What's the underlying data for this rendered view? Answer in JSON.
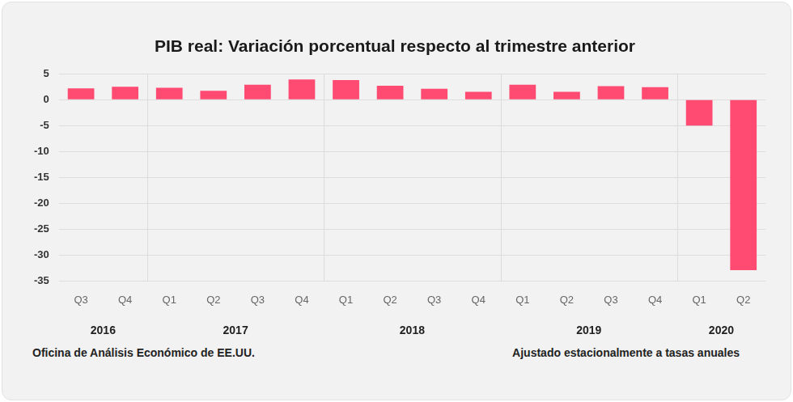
{
  "chart_data": {
    "type": "bar",
    "title": "PIB real: Variación porcentual respecto al trimestre anterior",
    "groups": [
      {
        "label": "2016",
        "categories": [
          "Q3",
          "Q4"
        ]
      },
      {
        "label": "2017",
        "categories": [
          "Q1",
          "Q2",
          "Q3",
          "Q4"
        ]
      },
      {
        "label": "2018",
        "categories": [
          "Q1",
          "Q2",
          "Q3",
          "Q4"
        ]
      },
      {
        "label": "2019",
        "categories": [
          "Q1",
          "Q2",
          "Q3",
          "Q4"
        ]
      },
      {
        "label": "2020",
        "categories": [
          "Q1",
          "Q2"
        ]
      }
    ],
    "values": [
      2.2,
      2.5,
      2.3,
      1.7,
      2.9,
      3.9,
      3.8,
      2.7,
      2.1,
      1.5,
      2.9,
      1.5,
      2.6,
      2.4,
      -5.0,
      -32.9
    ],
    "color": "#ff4a72",
    "ylim": [
      -35,
      5
    ],
    "yticks": [
      -35,
      -30,
      -25,
      -20,
      -15,
      -10,
      -5,
      0,
      5
    ],
    "grid": true,
    "source": "Oficina de Análisis Económico de EE.UU.",
    "note": "Ajustado estacionalmente a tasas anuales"
  }
}
